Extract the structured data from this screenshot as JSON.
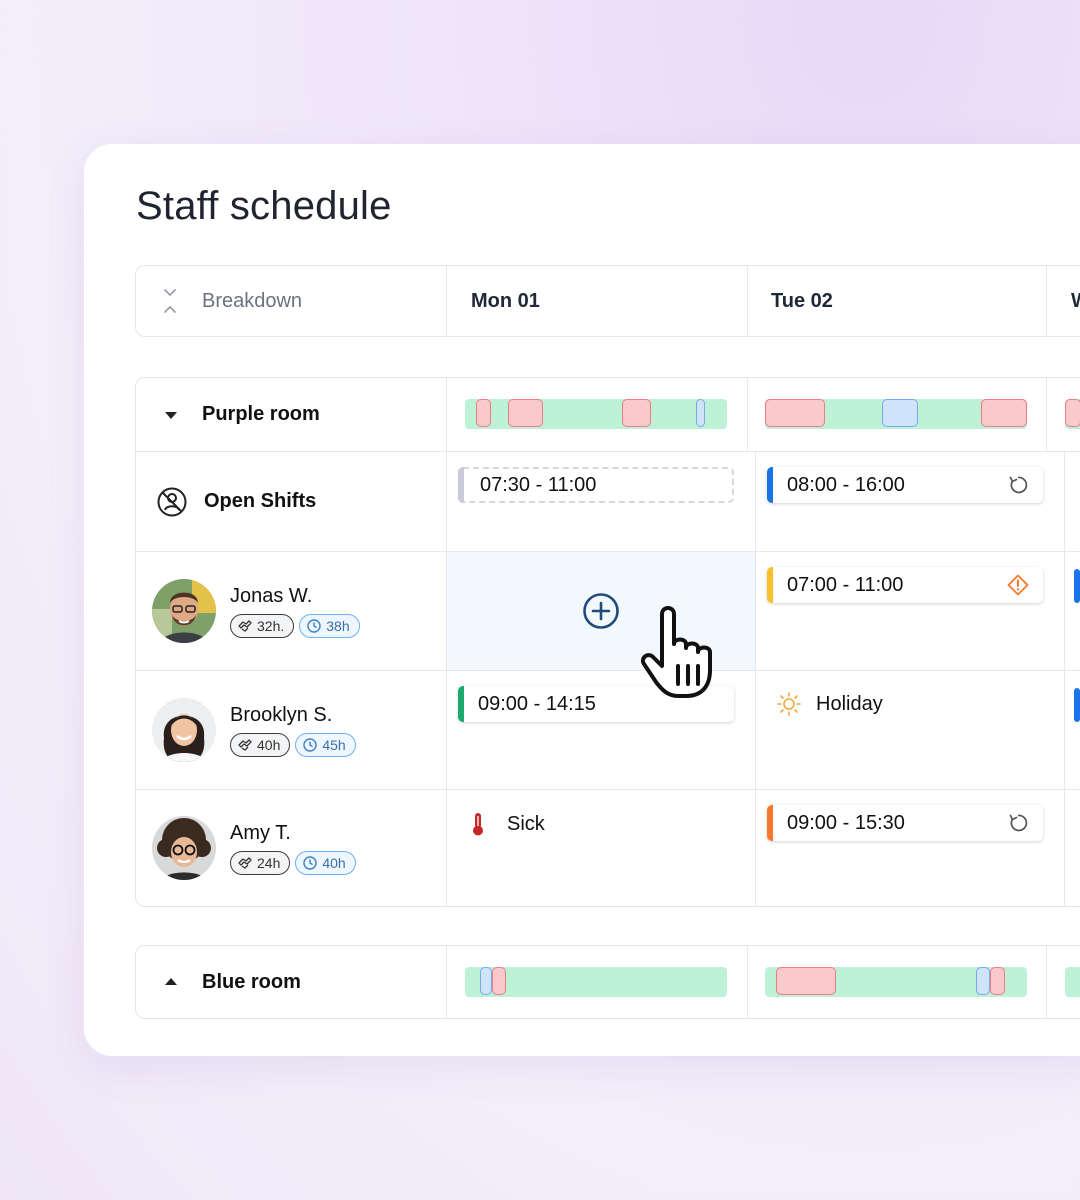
{
  "title": "Staff schedule",
  "header": {
    "breakdown_label": "Breakdown",
    "days": [
      "Mon 01",
      "Tue 02",
      "W"
    ]
  },
  "groups": {
    "purple": {
      "name": "Purple room"
    },
    "blue": {
      "name": "Blue room"
    }
  },
  "open_shifts": {
    "label": "Open Shifts",
    "mon": "07:30 - 11:00",
    "tue": "08:00 - 16:00"
  },
  "staff": [
    {
      "name": "Jonas W.",
      "contract": "32h.",
      "scheduled": "38h",
      "tue_shift": "07:00 - 11:00"
    },
    {
      "name": "Brooklyn S.",
      "contract": "40h",
      "scheduled": "45h",
      "mon_shift": "09:00 - 14:15",
      "tue_status": "Holiday"
    },
    {
      "name": "Amy T.",
      "contract": "24h",
      "scheduled": "40h",
      "mon_status": "Sick",
      "tue_shift": "09:00 - 15:30"
    }
  ],
  "colors": {
    "coverage": "#bdf2d7",
    "gap": "#f9c9cc",
    "overlap": "#cfe3fb",
    "shift_blue": "#1a73e8",
    "shift_yellow": "#f6c12b",
    "shift_green": "#1dab6b",
    "shift_orange": "#f7782b",
    "shift_open": "#c9cbd6",
    "warning": "#f7782b"
  },
  "icons": [
    "chevrons-collapse-icon",
    "caret-down-icon",
    "caret-up-icon",
    "open-shifts-icon",
    "repeat-icon",
    "warning-icon",
    "plus-circle-icon",
    "hand-cursor-icon",
    "sun-icon",
    "thermometer-icon",
    "contract-hours-icon",
    "clock-icon"
  ]
}
